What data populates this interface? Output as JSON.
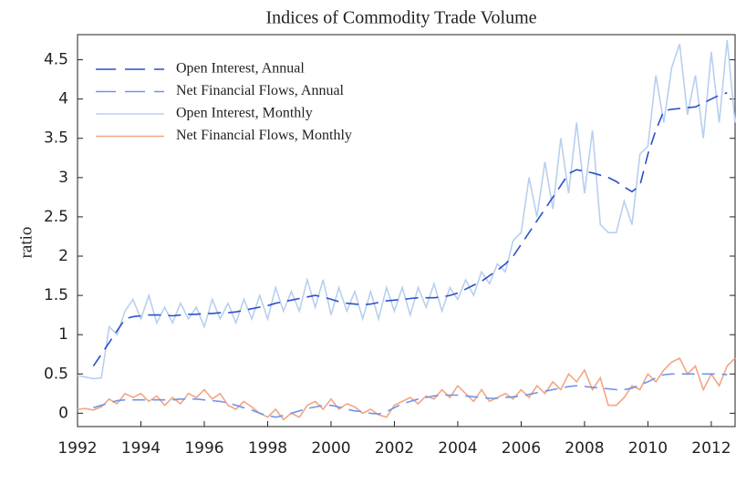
{
  "chart_data": {
    "type": "line",
    "title": "Indices of Commodity Trade Volume",
    "y_label": "ratio",
    "x": [
      1992,
      1992.25,
      1992.5,
      1992.75,
      1993,
      1993.25,
      1993.5,
      1993.75,
      1994,
      1994.25,
      1994.5,
      1994.75,
      1995,
      1995.25,
      1995.5,
      1995.75,
      1996,
      1996.25,
      1996.5,
      1996.75,
      1997,
      1997.25,
      1997.5,
      1997.75,
      1998,
      1998.25,
      1998.5,
      1998.75,
      1999,
      1999.25,
      1999.5,
      1999.75,
      2000,
      2000.25,
      2000.5,
      2000.75,
      2001,
      2001.25,
      2001.5,
      2001.75,
      2002,
      2002.25,
      2002.5,
      2002.75,
      2003,
      2003.25,
      2003.5,
      2003.75,
      2004,
      2004.25,
      2004.5,
      2004.75,
      2005,
      2005.25,
      2005.5,
      2005.75,
      2006,
      2006.25,
      2006.5,
      2006.75,
      2007,
      2007.25,
      2007.5,
      2007.75,
      2008,
      2008.25,
      2008.5,
      2008.75,
      2009,
      2009.25,
      2009.5,
      2009.75,
      2010,
      2010.25,
      2010.5,
      2010.75,
      2011,
      2011.25,
      2011.5,
      2011.75,
      2012,
      2012.25,
      2012.5,
      2012.75
    ],
    "series": [
      {
        "name": "Open Interest, Annual",
        "color": "#2b4fcb",
        "dashed": true,
        "values": [
          null,
          null,
          0.6,
          0.75,
          0.9,
          1.05,
          1.2,
          1.23,
          1.24,
          1.25,
          1.25,
          1.25,
          1.24,
          1.25,
          1.26,
          1.26,
          1.27,
          1.27,
          1.28,
          1.28,
          1.29,
          1.31,
          1.33,
          1.35,
          1.37,
          1.4,
          1.42,
          1.44,
          1.46,
          1.48,
          1.5,
          1.48,
          1.45,
          1.42,
          1.4,
          1.39,
          1.38,
          1.39,
          1.41,
          1.43,
          1.44,
          1.45,
          1.46,
          1.47,
          1.47,
          1.47,
          1.48,
          1.5,
          1.53,
          1.58,
          1.63,
          1.68,
          1.75,
          1.82,
          1.9,
          2.0,
          2.15,
          2.3,
          2.45,
          2.6,
          2.75,
          2.9,
          3.05,
          3.1,
          3.08,
          3.06,
          3.03,
          3.0,
          2.95,
          2.88,
          2.82,
          2.9,
          3.3,
          3.6,
          3.85,
          3.87,
          3.88,
          3.89,
          3.9,
          3.95,
          4.0,
          4.05,
          4.08,
          null
        ]
      },
      {
        "name": "Net Financial Flows, Annual",
        "color": "#6f95e8",
        "dashed": true,
        "values": [
          null,
          null,
          0.07,
          0.1,
          0.13,
          0.16,
          0.17,
          0.17,
          0.17,
          0.17,
          0.17,
          0.17,
          0.17,
          0.18,
          0.18,
          0.18,
          0.17,
          0.16,
          0.15,
          0.13,
          0.1,
          0.07,
          0.04,
          0.0,
          -0.03,
          -0.05,
          -0.03,
          0.0,
          0.03,
          0.06,
          0.08,
          0.1,
          0.1,
          0.08,
          0.05,
          0.03,
          0.02,
          0.0,
          -0.01,
          0.02,
          0.07,
          0.12,
          0.15,
          0.18,
          0.2,
          0.22,
          0.23,
          0.23,
          0.23,
          0.22,
          0.21,
          0.2,
          0.19,
          0.19,
          0.2,
          0.21,
          0.22,
          0.24,
          0.26,
          0.28,
          0.3,
          0.32,
          0.34,
          0.35,
          0.34,
          0.33,
          0.32,
          0.31,
          0.3,
          0.3,
          0.32,
          0.36,
          0.4,
          0.45,
          0.49,
          0.5,
          0.5,
          0.5,
          0.5,
          0.5,
          0.5,
          0.5,
          0.49,
          null
        ]
      },
      {
        "name": "Open Interest, Monthly",
        "color": "#b8cff0",
        "dashed": false,
        "values": [
          0.48,
          0.46,
          0.44,
          0.45,
          1.1,
          1.0,
          1.3,
          1.45,
          1.2,
          1.5,
          1.15,
          1.35,
          1.15,
          1.4,
          1.2,
          1.35,
          1.1,
          1.45,
          1.2,
          1.4,
          1.15,
          1.45,
          1.2,
          1.5,
          1.2,
          1.6,
          1.3,
          1.55,
          1.3,
          1.7,
          1.35,
          1.7,
          1.25,
          1.6,
          1.3,
          1.55,
          1.2,
          1.55,
          1.2,
          1.6,
          1.3,
          1.6,
          1.25,
          1.6,
          1.35,
          1.65,
          1.3,
          1.6,
          1.45,
          1.7,
          1.5,
          1.8,
          1.65,
          1.9,
          1.8,
          2.2,
          2.3,
          3.0,
          2.5,
          3.2,
          2.6,
          3.5,
          2.8,
          3.7,
          2.8,
          3.6,
          2.4,
          2.3,
          2.3,
          2.7,
          2.4,
          3.3,
          3.4,
          4.3,
          3.7,
          4.4,
          4.7,
          3.8,
          4.3,
          3.5,
          4.6,
          3.7,
          4.75,
          3.7
        ]
      },
      {
        "name": "Net Financial Flows, Monthly",
        "color": "#f4a582",
        "dashed": false,
        "values": [
          0.05,
          0.06,
          0.04,
          0.08,
          0.18,
          0.12,
          0.25,
          0.2,
          0.25,
          0.15,
          0.22,
          0.1,
          0.2,
          0.12,
          0.25,
          0.2,
          0.3,
          0.18,
          0.25,
          0.1,
          0.05,
          0.15,
          0.08,
          0.0,
          -0.05,
          0.05,
          -0.08,
          0.0,
          -0.05,
          0.1,
          0.15,
          0.05,
          0.18,
          0.05,
          0.12,
          0.08,
          0.0,
          0.05,
          -0.02,
          -0.05,
          0.1,
          0.15,
          0.2,
          0.12,
          0.22,
          0.18,
          0.3,
          0.2,
          0.35,
          0.25,
          0.15,
          0.3,
          0.15,
          0.2,
          0.25,
          0.18,
          0.3,
          0.2,
          0.35,
          0.25,
          0.4,
          0.3,
          0.5,
          0.4,
          0.55,
          0.3,
          0.45,
          0.1,
          0.1,
          0.2,
          0.35,
          0.3,
          0.5,
          0.4,
          0.55,
          0.65,
          0.7,
          0.5,
          0.6,
          0.3,
          0.5,
          0.35,
          0.6,
          0.7
        ]
      }
    ],
    "xlim": [
      1992,
      2012.78
    ],
    "xticks": [
      1992,
      1994,
      1996,
      1998,
      2000,
      2002,
      2004,
      2006,
      2008,
      2010,
      2012
    ],
    "ylim": [
      -0.17,
      4.82
    ],
    "yticks": [
      0,
      0.5,
      1,
      1.5,
      2,
      2.5,
      3,
      3.5,
      4,
      4.5
    ],
    "legend": "upper left"
  }
}
